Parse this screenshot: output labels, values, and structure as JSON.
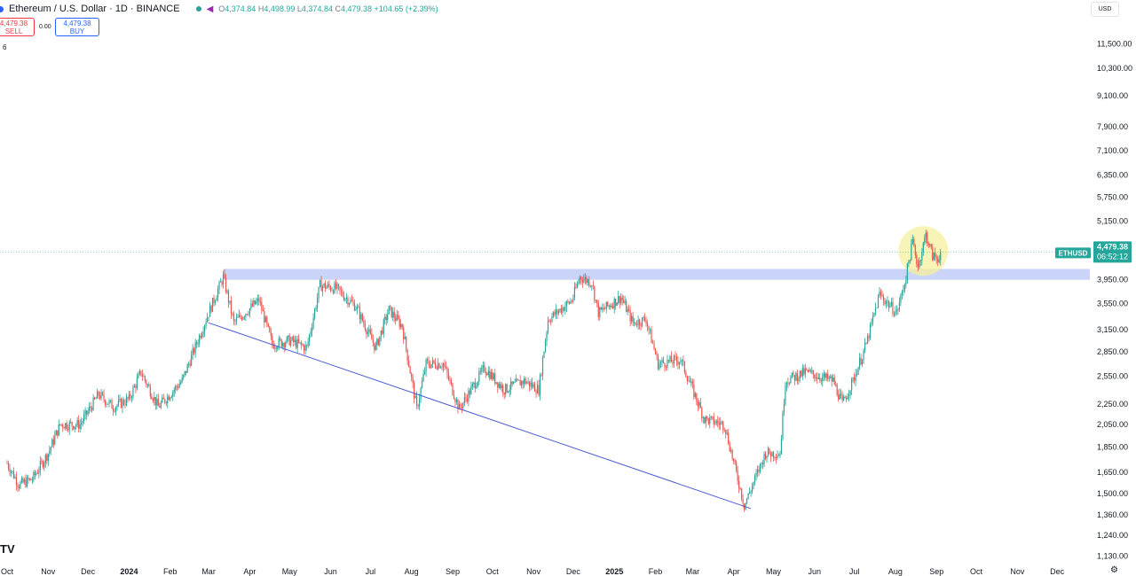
{
  "header": {
    "title": "Ethereum / U.S. Dollar · 1D · BINANCE",
    "ohlc": {
      "o_label": "O",
      "o": "4,374.84",
      "h_label": "H",
      "h": "4,498.99",
      "l_label": "L",
      "l": "4,374.84",
      "c_label": "C",
      "c": "4,479.38",
      "change": "+104.65 (+2.39%)"
    },
    "sell_price": "4,479.38",
    "sell_label": "SELL",
    "buy_price": "4,479.38",
    "buy_label": "BUY",
    "spread": "0.00",
    "indicator_count": "6",
    "currency": "USD",
    "icons": [
      "symbol-dot-icon",
      "status-dot-icon",
      "share-icon"
    ]
  },
  "price_tag": {
    "symbol": "ETHUSD",
    "price": "4,479.38",
    "countdown": "06:52:12"
  },
  "logo_text": "TV",
  "colors": {
    "up": "#26a69a",
    "down": "#ef5350",
    "zone": "#bfcdf7",
    "trendline": "#4a5bd1",
    "highlight": "#f6ef9e",
    "tag": "#26a69a"
  },
  "chart_data": {
    "type": "candlestick",
    "symbol": "ETHUSD",
    "y_scale": "log",
    "ylim": [
      1100,
      12700
    ],
    "xlim": [
      "2023-10-01",
      "2025-12-31"
    ],
    "y_ticks": [
      "11,500.00",
      "10,300.00",
      "9,100.00",
      "7,900.00",
      "7,100.00",
      "6,350.00",
      "5,750.00",
      "5,150.00",
      "3,950.00",
      "3,550.00",
      "3,150.00",
      "2,850.00",
      "2,550.00",
      "2,250.00",
      "2,050.00",
      "1,850.00",
      "1,650.00",
      "1,500.00",
      "1,360.00",
      "1,240.00",
      "1,130.00"
    ],
    "x_ticks": [
      {
        "label": "Oct",
        "date": "2023-10-01"
      },
      {
        "label": "Nov",
        "date": "2023-11-01"
      },
      {
        "label": "Dec",
        "date": "2023-12-01"
      },
      {
        "label": "2024",
        "date": "2024-01-01",
        "bold": true
      },
      {
        "label": "Feb",
        "date": "2024-02-01"
      },
      {
        "label": "Mar",
        "date": "2024-03-01"
      },
      {
        "label": "Apr",
        "date": "2024-04-01"
      },
      {
        "label": "May",
        "date": "2024-05-01"
      },
      {
        "label": "Jun",
        "date": "2024-06-01"
      },
      {
        "label": "Jul",
        "date": "2024-07-01"
      },
      {
        "label": "Aug",
        "date": "2024-08-01"
      },
      {
        "label": "Sep",
        "date": "2024-09-01"
      },
      {
        "label": "Oct",
        "date": "2024-10-01"
      },
      {
        "label": "Nov",
        "date": "2024-11-01"
      },
      {
        "label": "Dec",
        "date": "2024-12-01"
      },
      {
        "label": "2025",
        "date": "2025-01-01",
        "bold": true
      },
      {
        "label": "Feb",
        "date": "2025-02-01"
      },
      {
        "label": "Mar",
        "date": "2025-03-01"
      },
      {
        "label": "Apr",
        "date": "2025-04-01"
      },
      {
        "label": "May",
        "date": "2025-05-01"
      },
      {
        "label": "Jun",
        "date": "2025-06-01"
      },
      {
        "label": "Jul",
        "date": "2025-07-01"
      },
      {
        "label": "Aug",
        "date": "2025-08-01"
      },
      {
        "label": "Sep",
        "date": "2025-09-01"
      },
      {
        "label": "Oct",
        "date": "2025-10-01"
      },
      {
        "label": "Nov",
        "date": "2025-11-01"
      },
      {
        "label": "Dec",
        "date": "2025-12-01"
      }
    ],
    "price_path": [
      [
        "2023-10-01",
        1720
      ],
      [
        "2023-10-10",
        1560
      ],
      [
        "2023-10-20",
        1600
      ],
      [
        "2023-11-01",
        1800
      ],
      [
        "2023-11-10",
        2050
      ],
      [
        "2023-11-25",
        2050
      ],
      [
        "2023-12-09",
        2350
      ],
      [
        "2023-12-20",
        2220
      ],
      [
        "2024-01-01",
        2300
      ],
      [
        "2024-01-10",
        2600
      ],
      [
        "2024-01-23",
        2220
      ],
      [
        "2024-02-10",
        2500
      ],
      [
        "2024-02-28",
        3300
      ],
      [
        "2024-03-12",
        4000
      ],
      [
        "2024-03-20",
        3250
      ],
      [
        "2024-04-08",
        3600
      ],
      [
        "2024-04-18",
        2950
      ],
      [
        "2024-05-01",
        3000
      ],
      [
        "2024-05-14",
        2900
      ],
      [
        "2024-05-24",
        3850
      ],
      [
        "2024-06-05",
        3800
      ],
      [
        "2024-06-20",
        3500
      ],
      [
        "2024-07-05",
        2900
      ],
      [
        "2024-07-15",
        3450
      ],
      [
        "2024-07-25",
        3200
      ],
      [
        "2024-08-05",
        2200
      ],
      [
        "2024-08-12",
        2700
      ],
      [
        "2024-08-25",
        2700
      ],
      [
        "2024-09-06",
        2200
      ],
      [
        "2024-09-25",
        2650
      ],
      [
        "2024-10-10",
        2400
      ],
      [
        "2024-10-25",
        2500
      ],
      [
        "2024-11-05",
        2400
      ],
      [
        "2024-11-12",
        3300
      ],
      [
        "2024-11-30",
        3600
      ],
      [
        "2024-12-06",
        4000
      ],
      [
        "2024-12-15",
        3900
      ],
      [
        "2024-12-20",
        3400
      ],
      [
        "2025-01-06",
        3650
      ],
      [
        "2025-01-15",
        3250
      ],
      [
        "2025-01-25",
        3300
      ],
      [
        "2025-02-03",
        2700
      ],
      [
        "2025-02-20",
        2750
      ],
      [
        "2025-03-10",
        2100
      ],
      [
        "2025-03-25",
        2050
      ],
      [
        "2025-04-09",
        1420
      ],
      [
        "2025-04-25",
        1800
      ],
      [
        "2025-05-06",
        1800
      ],
      [
        "2025-05-10",
        2500
      ],
      [
        "2025-05-25",
        2600
      ],
      [
        "2025-06-15",
        2500
      ],
      [
        "2025-06-22",
        2250
      ],
      [
        "2025-06-30",
        2500
      ],
      [
        "2025-07-10",
        2950
      ],
      [
        "2025-07-20",
        3700
      ],
      [
        "2025-08-02",
        3400
      ],
      [
        "2025-08-08",
        3900
      ],
      [
        "2025-08-14",
        4700
      ],
      [
        "2025-08-18",
        4200
      ],
      [
        "2025-08-24",
        4850
      ],
      [
        "2025-08-29",
        4400
      ],
      [
        "2025-09-02",
        4350
      ],
      [
        "2025-09-04",
        4479.38
      ]
    ],
    "current_price": 4479.38,
    "zones": [
      {
        "from": "2024-03-12",
        "to": "2025-12-31",
        "low": 3950,
        "high": 4150
      }
    ],
    "trendlines": [
      {
        "from": [
          "2024-03-01",
          3250
        ],
        "to": [
          "2025-04-14",
          1400
        ]
      }
    ],
    "highlights": [
      {
        "date": "2025-08-22",
        "price": 4500
      }
    ]
  }
}
